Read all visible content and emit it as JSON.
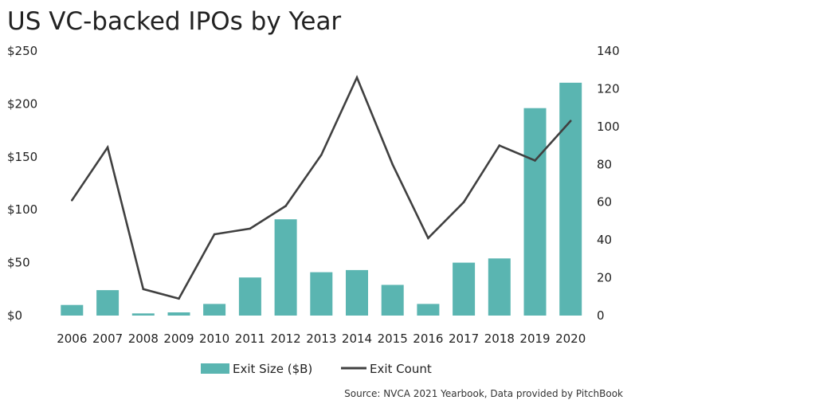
{
  "chart_data": {
    "type": "bar",
    "title": "US VC-backed IPOs by Year",
    "categories": [
      "2006",
      "2007",
      "2008",
      "2009",
      "2010",
      "2011",
      "2012",
      "2013",
      "2014",
      "2015",
      "2016",
      "2017",
      "2018",
      "2019",
      "2020"
    ],
    "series": [
      {
        "name": "Exit Size ($B)",
        "type": "bar",
        "axis": "left",
        "values": [
          10,
          24,
          2,
          3,
          11,
          36,
          91,
          41,
          43,
          29,
          11,
          50,
          54,
          196,
          220
        ]
      },
      {
        "name": "Exit Count",
        "type": "line",
        "axis": "right",
        "values": [
          61,
          89,
          14,
          9,
          43,
          46,
          58,
          85,
          126,
          80,
          41,
          60,
          90,
          82,
          103
        ]
      }
    ],
    "y_left": {
      "min": 0,
      "max": 250,
      "ticks": [
        0,
        50,
        100,
        150,
        200,
        250
      ],
      "tick_labels": [
        "$0",
        "$50",
        "$100",
        "$150",
        "$200",
        "$250"
      ]
    },
    "y_right": {
      "min": 0,
      "max": 140,
      "ticks": [
        0,
        20,
        40,
        60,
        80,
        100,
        120,
        140
      ],
      "tick_labels": [
        "0",
        "20",
        "40",
        "60",
        "80",
        "100",
        "120",
        "140"
      ]
    },
    "grid": false,
    "legend_position": "bottom-center",
    "source": "Source: NVCA 2021 Yearbook, Data provided by PitchBook",
    "colors": {
      "bar": "#5ab5b1",
      "line": "#404040",
      "text": "#222222"
    }
  }
}
